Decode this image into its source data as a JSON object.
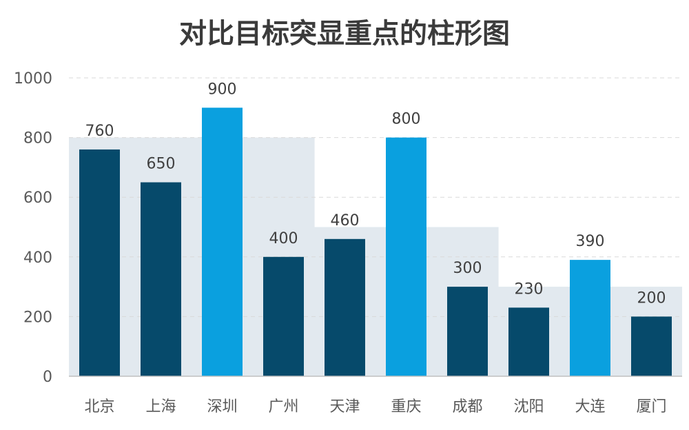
{
  "chart_data": {
    "type": "bar",
    "title": "对比目标突显重点的柱形图",
    "categories": [
      "北京",
      "上海",
      "深圳",
      "广州",
      "天津",
      "重庆",
      "成都",
      "沈阳",
      "大连",
      "厦门"
    ],
    "values": [
      760,
      650,
      900,
      400,
      460,
      800,
      300,
      230,
      390,
      200
    ],
    "targets": [
      800,
      800,
      800,
      800,
      500,
      500,
      500,
      300,
      300,
      300
    ],
    "highlighted": [
      "深圳",
      "重庆",
      "大连"
    ],
    "yticks": [
      0,
      200,
      400,
      600,
      800,
      1000
    ],
    "ylim": [
      0,
      1000
    ],
    "grid": true,
    "colors": {
      "bar": "#064a6b",
      "highlight": "#0aa0df",
      "target_band": "#e2e9ef",
      "grid": "#d9d9d9"
    }
  }
}
